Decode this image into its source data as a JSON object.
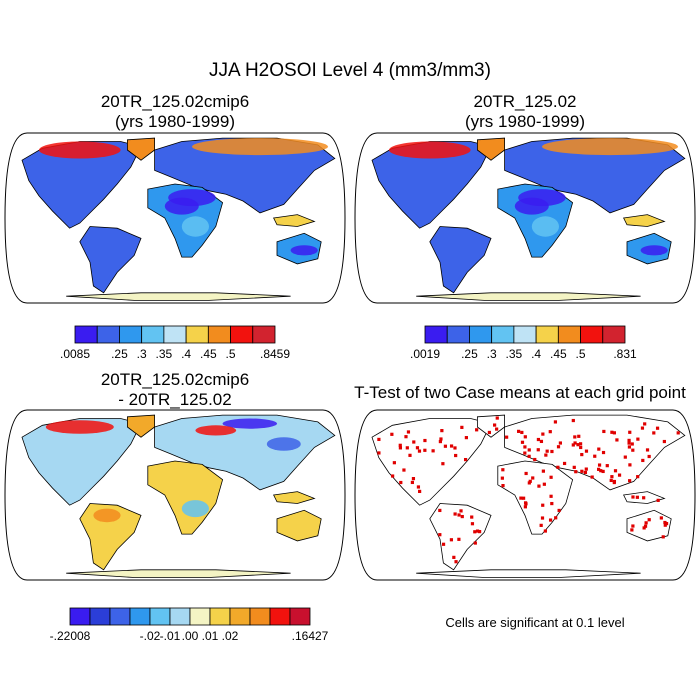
{
  "figure_title": "JJA H2OSOI Level 4 (mm3/mm3)",
  "note": "Cells are significant at 0.1 level",
  "panels": [
    {
      "title_line1": "20TR_125.02cmip6",
      "title_line2": "(yrs 1980-1999)"
    },
    {
      "title_line1": "20TR_125.02",
      "title_line2": "(yrs 1980-1999)"
    },
    {
      "title_line1": "20TR_125.02cmip6",
      "title_line2": "- 20TR_125.02"
    },
    {
      "title_line1": "T-Test of two Case means at each grid point",
      "title_line2": ""
    }
  ],
  "chart_data": [
    {
      "type": "heatmap",
      "title": "20TR_125.02cmip6",
      "subtitle": "(yrs 1980-1999)",
      "variable": "JJA H2OSOI Level 4 (mm3/mm3)",
      "colorbar": {
        "min_label": ".0085",
        "max_label": ".8459",
        "levels": [
          ".25",
          ".3",
          ".35",
          ".4",
          ".45",
          ".5"
        ],
        "colors": [
          "#3a1cf0",
          "#3d63e8",
          "#2f98ee",
          "#62c3f2",
          "#bfe3f5",
          "#f5d24a",
          "#f28c1e",
          "#f2120e",
          "#d2232f"
        ]
      }
    },
    {
      "type": "heatmap",
      "title": "20TR_125.02",
      "subtitle": "(yrs 1980-1999)",
      "variable": "JJA H2OSOI Level 4 (mm3/mm3)",
      "colorbar": {
        "min_label": ".0019",
        "max_label": ".831",
        "levels": [
          ".25",
          ".3",
          ".35",
          ".4",
          ".45",
          ".5"
        ],
        "colors": [
          "#3a1cf0",
          "#3d63e8",
          "#2f98ee",
          "#62c3f2",
          "#bfe3f5",
          "#f5d24a",
          "#f28c1e",
          "#f2120e",
          "#d2232f"
        ]
      }
    },
    {
      "type": "heatmap",
      "title": "20TR_125.02cmip6 - 20TR_125.02",
      "colorbar": {
        "min_label": "-.22008",
        "max_label": ".16427",
        "levels": [
          "-.02",
          "-.01",
          ".00",
          ".01",
          ".02"
        ],
        "colors": [
          "#3a1cf0",
          "#2b3ed8",
          "#3d63e8",
          "#2f98ee",
          "#62c3f2",
          "#a6d8f2",
          "#f4f4c4",
          "#f5d24a",
          "#f2a92a",
          "#f28c1e",
          "#f2120e",
          "#c8102e"
        ]
      }
    },
    {
      "type": "heatmap",
      "title": "T-Test of two Case means at each grid point",
      "note": "Cells are significant at 0.1 level",
      "significant_color": "#e00000"
    }
  ]
}
